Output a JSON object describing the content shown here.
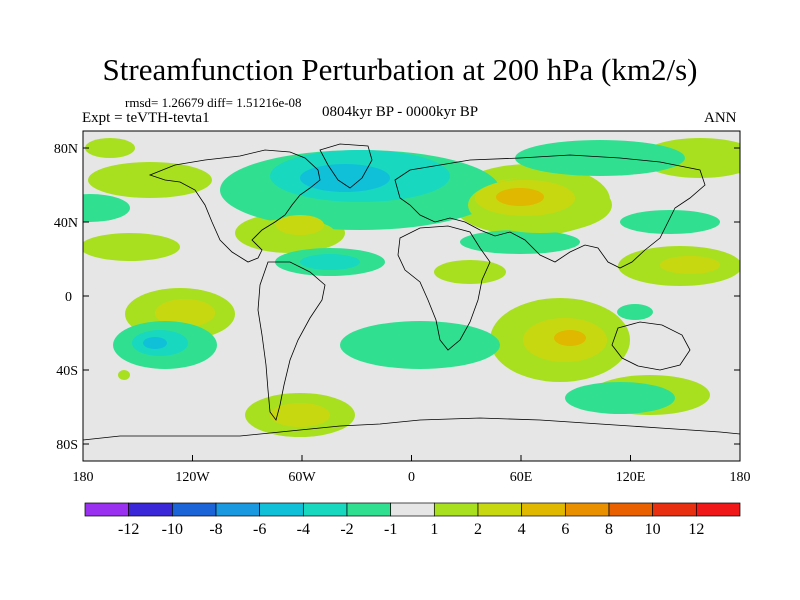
{
  "title": "Streamfunction Perturbation at 200 hPa (km2/s)",
  "stats": "rmsd= 1.26679  diff= 1.51216e-08",
  "experiment": "Expt = teVTH-tevta1",
  "period": "0804kyr BP - 0000kyr BP",
  "season": "ANN",
  "axes": {
    "lat_ticks": [
      "80N",
      "40N",
      "0",
      "40S",
      "80S"
    ],
    "lon_ticks": [
      "180",
      "120W",
      "60W",
      "0",
      "60E",
      "120E",
      "180"
    ]
  },
  "colorbar": {
    "labels": [
      "-12",
      "-10",
      "-8",
      "-6",
      "-4",
      "-2",
      "-1",
      "1",
      "2",
      "4",
      "6",
      "8",
      "10",
      "12"
    ],
    "colors": [
      "#9a30f0",
      "#3a28d8",
      "#1a64d8",
      "#1a98e0",
      "#10c0d8",
      "#18d8c0",
      "#30e090",
      "#e6e6e6",
      "#a8e020",
      "#c8d810",
      "#e0b800",
      "#e89000",
      "#e86000",
      "#e83010",
      "#f01818"
    ]
  }
}
